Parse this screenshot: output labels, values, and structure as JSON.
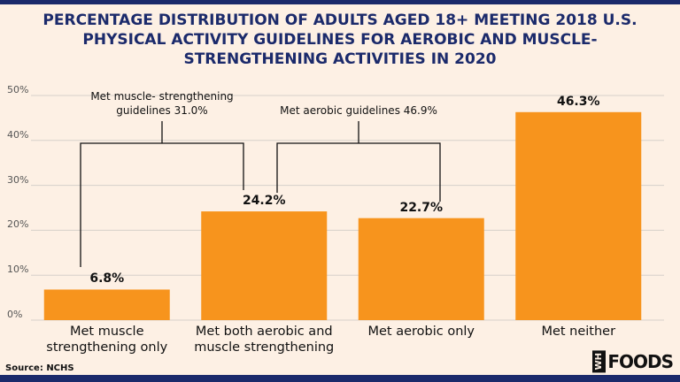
{
  "chart_data": {
    "type": "bar",
    "title": "PERCENTAGE DISTRIBUTION OF ADULTS AGED 18+ MEETING 2018 U.S. PHYSICAL ACTIVITY GUIDELINES FOR AEROBIC AND MUSCLE-STRENGTHENING ACTIVITIES IN 2020",
    "categories": [
      "Met muscle strengthening only",
      "Met both aerobic and muscle strengthening",
      "Met aerobic only",
      "Met neither"
    ],
    "values": [
      6.8,
      24.2,
      22.7,
      46.3
    ],
    "value_labels": [
      "6.8%",
      "24.2%",
      "22.7%",
      "46.3%"
    ],
    "color": "#f7941d",
    "ylim": [
      0,
      50
    ],
    "yticks": [
      {
        "value": 0,
        "label": "0%"
      },
      {
        "value": 10,
        "label": "10%"
      },
      {
        "value": 20,
        "label": "20%"
      },
      {
        "value": 30,
        "label": "30%"
      },
      {
        "value": 40,
        "label": "40%"
      },
      {
        "value": 50,
        "label": "50%"
      }
    ],
    "grid": true,
    "annotations": [
      "Met muscle- strengthening guidelines 31.0%",
      "Met aerobic guidelines 46.9%"
    ],
    "source": "Source: NCHS"
  },
  "logo": {
    "badge": "WH",
    "text": "FOODS"
  }
}
